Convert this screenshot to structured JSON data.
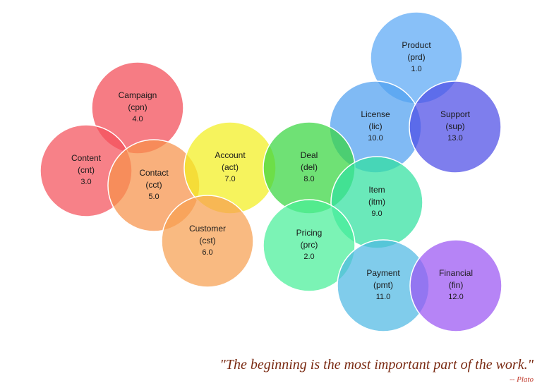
{
  "nodes": [
    {
      "id": "product",
      "name": "Product",
      "abbr": "(prd)",
      "value": "1.0",
      "color": "#5aa8f5"
    },
    {
      "id": "campaign",
      "name": "Campaign",
      "abbr": "(cpn)",
      "value": "4.0",
      "color": "#f24a55"
    },
    {
      "id": "license",
      "name": "License",
      "abbr": "(lic)",
      "value": "10.0",
      "color": "#4f9ff0"
    },
    {
      "id": "support",
      "name": "Support",
      "abbr": "(sup)",
      "value": "13.0",
      "color": "#4c4ce6"
    },
    {
      "id": "content",
      "name": "Content",
      "abbr": "(cnt)",
      "value": "3.0",
      "color": "#f4505a"
    },
    {
      "id": "contact",
      "name": "Contact",
      "abbr": "(cct)",
      "value": "5.0",
      "color": "#f7914a"
    },
    {
      "id": "account",
      "name": "Account",
      "abbr": "(act)",
      "value": "7.0",
      "color": "#f2ee1e"
    },
    {
      "id": "deal",
      "name": "Deal",
      "abbr": "(del)",
      "value": "8.0",
      "color": "#38d640"
    },
    {
      "id": "item",
      "name": "Item",
      "abbr": "(itm)",
      "value": "9.0",
      "color": "#30e0a0"
    },
    {
      "id": "customer",
      "name": "Customer",
      "abbr": "(cst)",
      "value": "6.0",
      "color": "#f7a050"
    },
    {
      "id": "pricing",
      "name": "Pricing",
      "abbr": "(prc)",
      "value": "2.0",
      "color": "#48ef98"
    },
    {
      "id": "payment",
      "name": "Payment",
      "abbr": "(pmt)",
      "value": "11.0",
      "color": "#4fb8e3"
    },
    {
      "id": "financial",
      "name": "Financial",
      "abbr": "(fin)",
      "value": "12.0",
      "color": "#9a55f2"
    }
  ],
  "quote": {
    "text": "\"The beginning is the most important part of the work.\"",
    "attribution": "-- Plato"
  }
}
